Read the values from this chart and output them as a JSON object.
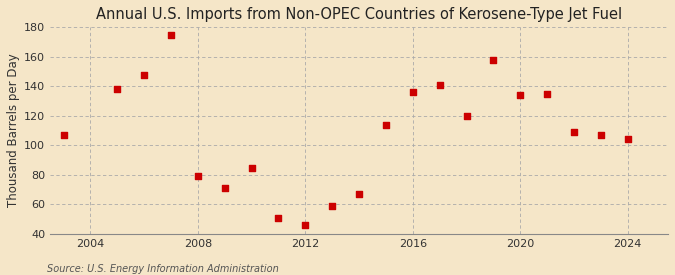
{
  "years": [
    2003,
    2005,
    2006,
    2007,
    2008,
    2009,
    2010,
    2011,
    2012,
    2013,
    2014,
    2015,
    2016,
    2017,
    2018,
    2019,
    2020,
    2021,
    2022,
    2023,
    2024
  ],
  "values": [
    107,
    138,
    148,
    175,
    79,
    71,
    85,
    51,
    46,
    59,
    67,
    114,
    136,
    141,
    120,
    158,
    134,
    135,
    109,
    107,
    104
  ],
  "title": "Annual U.S. Imports from Non-OPEC Countries of Kerosene-Type Jet Fuel",
  "ylabel": "Thousand Barrels per Day",
  "source": "Source: U.S. Energy Information Administration",
  "marker_color": "#cc0000",
  "marker_size": 5,
  "background_color": "#f5e6c8",
  "grid_color": "#aaaaaa",
  "ylim": [
    40,
    180
  ],
  "yticks": [
    40,
    60,
    80,
    100,
    120,
    140,
    160,
    180
  ],
  "xticks": [
    2004,
    2008,
    2012,
    2016,
    2020,
    2024
  ],
  "xlim": [
    2002.5,
    2025.5
  ],
  "title_fontsize": 10.5,
  "label_fontsize": 8.5,
  "tick_fontsize": 8,
  "source_fontsize": 7
}
